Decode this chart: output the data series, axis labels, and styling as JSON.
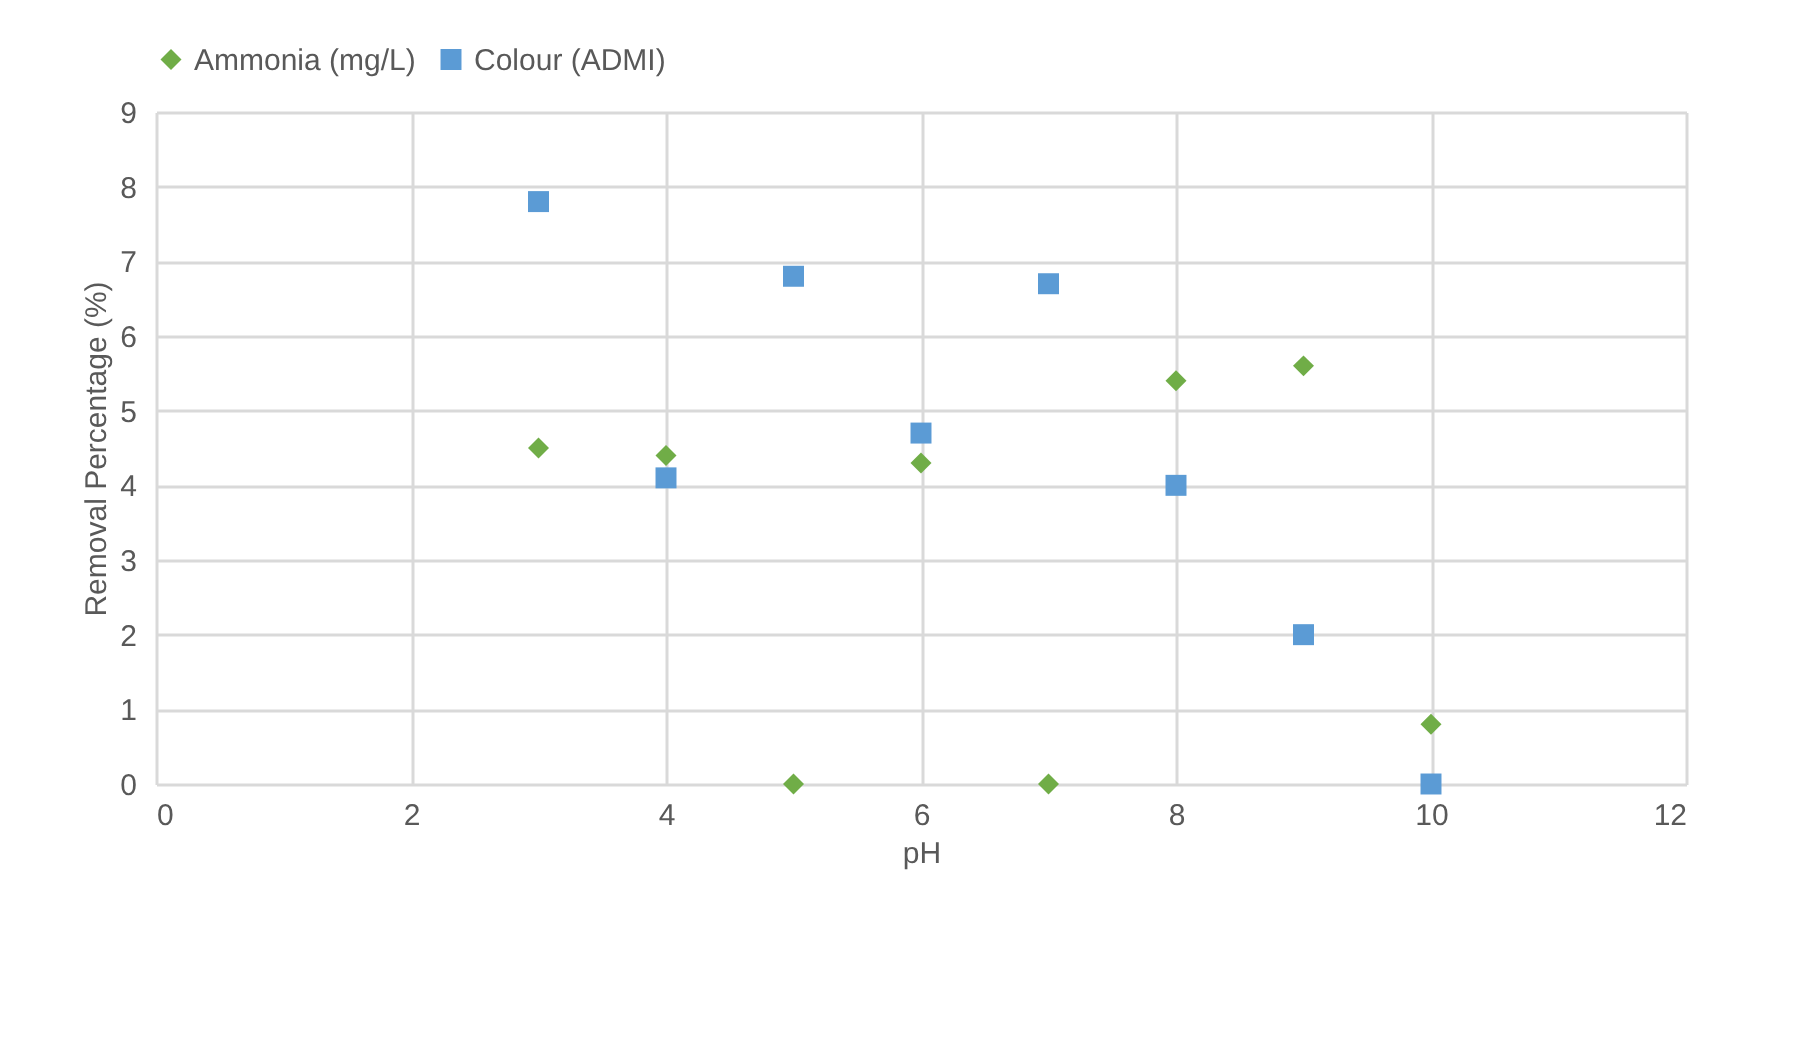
{
  "chart_data": {
    "type": "scatter",
    "xlabel": "pH",
    "ylabel": "Removal Percentage (%)",
    "x": [
      3,
      4,
      5,
      6,
      7,
      8,
      9,
      10
    ],
    "series": [
      {
        "name": "Ammonia (mg/L)",
        "color": "#70ad47",
        "marker": "diamond",
        "values": [
          4.5,
          4.4,
          0,
          4.3,
          0,
          5.4,
          5.6,
          0.8
        ]
      },
      {
        "name": "Colour (ADMI)",
        "color": "#5b9bd5",
        "marker": "square",
        "values": [
          7.8,
          4.1,
          6.8,
          4.7,
          6.7,
          4.0,
          2.0,
          0
        ]
      }
    ],
    "xlim": [
      0,
      12
    ],
    "xticks": [
      0,
      2,
      4,
      6,
      8,
      10,
      12
    ],
    "ylim": [
      0,
      9
    ],
    "yticks": [
      0,
      1,
      2,
      3,
      4,
      5,
      6,
      7,
      8,
      9
    ],
    "grid": true,
    "legend": "top"
  }
}
